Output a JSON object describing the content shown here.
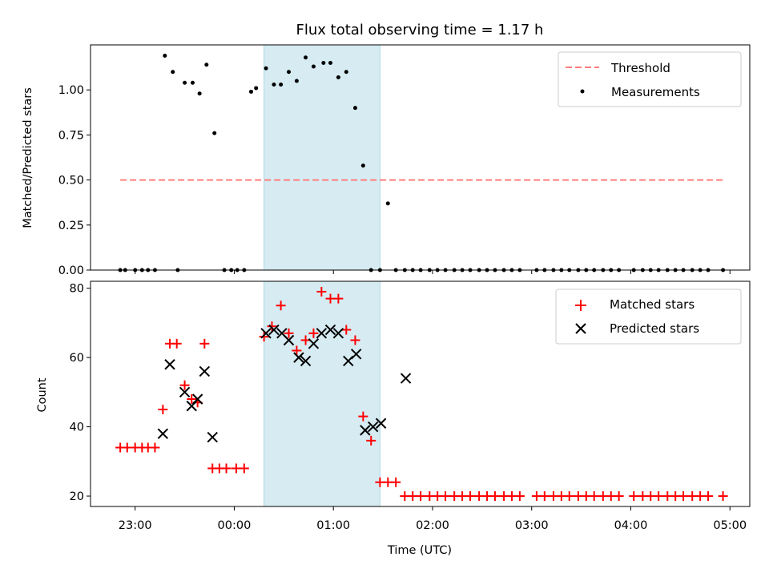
{
  "chart_data": [
    {
      "type": "scatter",
      "title": "Flux total observing time = 1.17 h",
      "xlabel": "",
      "ylabel": "Matched/Predicted stars",
      "ylim": [
        0,
        1.25
      ],
      "yticks": [
        "0.00",
        "0.25",
        "0.50",
        "0.75",
        "1.00"
      ],
      "ytick_values": [
        0,
        0.25,
        0.5,
        0.75,
        1.0
      ],
      "legend_position": "top-right",
      "shaded_region": {
        "x_start_hours": 0.3,
        "x_end_hours": 1.47,
        "color": "#add8e6"
      },
      "threshold": {
        "name": "Threshold",
        "value": 0.5,
        "x_start_hours": -1.15,
        "x_end_hours": 4.93,
        "color": "#ff7f7f"
      },
      "series": [
        {
          "name": "Measurements",
          "color": "#000000",
          "marker": "dot",
          "x": [
            -1.15,
            -1.1,
            -1.0,
            -0.93,
            -0.87,
            -0.8,
            -0.7,
            -0.62,
            -0.57,
            -0.5,
            -0.42,
            -0.35,
            -0.28,
            -0.2,
            -0.1,
            -0.03,
            0.03,
            0.1,
            0.17,
            0.22,
            0.32,
            0.4,
            0.47,
            0.55,
            0.63,
            0.72,
            0.8,
            0.9,
            0.97,
            1.05,
            1.13,
            1.22,
            1.3,
            1.38,
            1.47,
            1.55,
            1.63,
            1.72,
            1.8,
            1.88,
            1.97,
            2.05,
            2.13,
            2.22,
            2.3,
            2.38,
            2.47,
            2.55,
            2.63,
            2.72,
            2.8,
            2.88,
            3.05,
            3.13,
            3.22,
            3.3,
            3.38,
            3.47,
            3.55,
            3.63,
            3.72,
            3.8,
            3.88,
            4.03,
            4.12,
            4.2,
            4.28,
            4.37,
            4.45,
            4.53,
            4.62,
            4.7,
            4.78,
            4.93
          ],
          "y": [
            0,
            0,
            0,
            0,
            0,
            0,
            1.19,
            1.1,
            0,
            1.04,
            1.04,
            0.98,
            1.14,
            0.76,
            0,
            0,
            0,
            0,
            0.99,
            1.01,
            1.12,
            1.03,
            1.03,
            1.1,
            1.05,
            1.18,
            1.13,
            1.15,
            1.15,
            1.07,
            1.1,
            0.9,
            0.58,
            0,
            0,
            0.37,
            0,
            0,
            0,
            0,
            0,
            0,
            0,
            0,
            0,
            0,
            0,
            0,
            0,
            0,
            0,
            0,
            0,
            0,
            0,
            0,
            0,
            0,
            0,
            0,
            0,
            0,
            0,
            0,
            0,
            0,
            0,
            0,
            0,
            0,
            0,
            0,
            0,
            0
          ]
        }
      ]
    },
    {
      "type": "scatter",
      "title": "",
      "xlabel": "Time (UTC)",
      "ylabel": "Count",
      "ylim": [
        17,
        82
      ],
      "yticks": [
        "20",
        "40",
        "60",
        "80"
      ],
      "ytick_values": [
        20,
        40,
        60,
        80
      ],
      "xticks": [
        "23:00",
        "00:00",
        "01:00",
        "02:00",
        "03:00",
        "04:00",
        "05:00"
      ],
      "xtick_values": [
        -1,
        0,
        1,
        2,
        3,
        4,
        5
      ],
      "xlim_hours": [
        -1.45,
        5.2
      ],
      "legend_position": "top-right",
      "series": [
        {
          "name": "Matched stars",
          "color": "#ff0000",
          "marker": "plus",
          "x": [
            -1.15,
            -1.08,
            -1.0,
            -0.93,
            -0.87,
            -0.8,
            -0.72,
            -0.65,
            -0.58,
            -0.5,
            -0.43,
            -0.37,
            -0.3,
            -0.22,
            -0.15,
            -0.08,
            0.02,
            0.1,
            0.3,
            0.38,
            0.47,
            0.55,
            0.63,
            0.72,
            0.8,
            0.88,
            0.97,
            1.05,
            1.13,
            1.22,
            1.3,
            1.38,
            1.47,
            1.55,
            1.63,
            1.72,
            1.8,
            1.88,
            1.97,
            2.05,
            2.13,
            2.22,
            2.3,
            2.38,
            2.47,
            2.55,
            2.63,
            2.72,
            2.8,
            2.88,
            3.05,
            3.13,
            3.22,
            3.3,
            3.38,
            3.47,
            3.55,
            3.63,
            3.72,
            3.8,
            3.88,
            4.03,
            4.12,
            4.2,
            4.28,
            4.37,
            4.45,
            4.53,
            4.62,
            4.7,
            4.78,
            4.93
          ],
          "y": [
            34,
            34,
            34,
            34,
            34,
            34,
            45,
            64,
            64,
            52,
            48,
            47,
            64,
            28,
            28,
            28,
            28,
            28,
            66,
            69,
            75,
            67,
            62,
            65,
            67,
            79,
            77,
            77,
            68,
            65,
            43,
            36,
            24,
            24,
            24,
            20,
            20,
            20,
            20,
            20,
            20,
            20,
            20,
            20,
            20,
            20,
            20,
            20,
            20,
            20,
            20,
            20,
            20,
            20,
            20,
            20,
            20,
            20,
            20,
            20,
            20,
            20,
            20,
            20,
            20,
            20,
            20,
            20,
            20,
            20,
            20,
            20
          ]
        },
        {
          "name": "Predicted stars",
          "color": "#000000",
          "marker": "x",
          "x": [
            -0.72,
            -0.65,
            -0.5,
            -0.43,
            -0.37,
            -0.3,
            -0.22,
            0.32,
            0.4,
            0.48,
            0.55,
            0.65,
            0.72,
            0.8,
            0.88,
            0.97,
            1.05,
            1.15,
            1.23,
            1.32,
            1.4,
            1.48,
            1.73
          ],
          "y": [
            38,
            58,
            50,
            46,
            48,
            56,
            37,
            67,
            68,
            67,
            65,
            60,
            59,
            64,
            67,
            68,
            67,
            59,
            61,
            39,
            40,
            41,
            54
          ]
        }
      ]
    }
  ]
}
